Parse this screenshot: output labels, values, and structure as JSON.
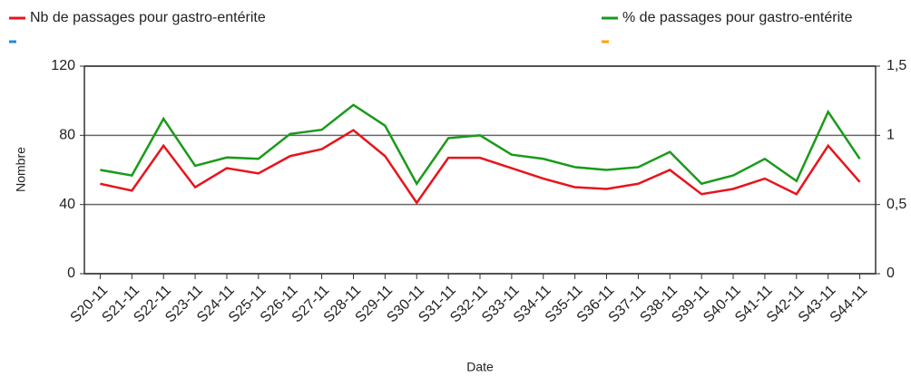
{
  "chart_data": {
    "type": "line",
    "categories": [
      "S20-11",
      "S21-11",
      "S22-11",
      "S23-11",
      "S24-11",
      "S25-11",
      "S26-11",
      "S27-11",
      "S28-11",
      "S29-11",
      "S30-11",
      "S31-11",
      "S32-11",
      "S33-11",
      "S34-11",
      "S35-11",
      "S36-11",
      "S37-11",
      "S38-11",
      "S39-11",
      "S40-11",
      "S41-11",
      "S42-11",
      "S43-11",
      "S44-11"
    ],
    "series": [
      {
        "name": "Nb de passages pour gastro-entérite",
        "color": "#e8141c",
        "values": [
          52,
          48,
          74,
          50,
          61,
          58,
          68,
          72,
          83,
          68,
          41,
          67,
          67,
          61,
          55,
          50,
          49,
          52,
          60,
          46,
          49,
          55,
          46,
          74,
          53
        ]
      },
      {
        "name": "% de passages pour gastro-entérite",
        "color": "#1a9a1a",
        "axis": "y2",
        "values": [
          0.75,
          0.71,
          1.12,
          0.78,
          0.84,
          0.83,
          1.01,
          1.04,
          1.22,
          1.07,
          0.65,
          0.98,
          1.0,
          0.86,
          0.83,
          0.77,
          0.75,
          0.77,
          0.88,
          0.65,
          0.71,
          0.83,
          0.67,
          1.17,
          0.83
        ]
      },
      {
        "color": "#1e88e5",
        "values": [
          null,
          null,
          null,
          null,
          null,
          null,
          null,
          null,
          null,
          null,
          null,
          null,
          null,
          null,
          null,
          null,
          null,
          null,
          null,
          null,
          null,
          null,
          null,
          null,
          null
        ]
      },
      {
        "color": "#ffa000",
        "axis": "y2",
        "values": [
          null,
          null,
          null,
          null,
          null,
          null,
          null,
          null,
          null,
          null,
          null,
          null,
          null,
          null,
          null,
          null,
          null,
          null,
          null,
          null,
          null,
          null,
          null,
          null,
          null
        ]
      }
    ],
    "ylabel": "Nombre",
    "xlabel": "Date",
    "ylim": [
      0,
      120
    ],
    "yticks": [
      0,
      40,
      80,
      120
    ],
    "y2lim": [
      0,
      1.5
    ],
    "y2ticks": [
      0,
      {
        "value": 0.5,
        "label": "0,5"
      },
      1,
      {
        "value": 1.5,
        "label": "1,5"
      }
    ],
    "grid": true,
    "legend": "top"
  }
}
